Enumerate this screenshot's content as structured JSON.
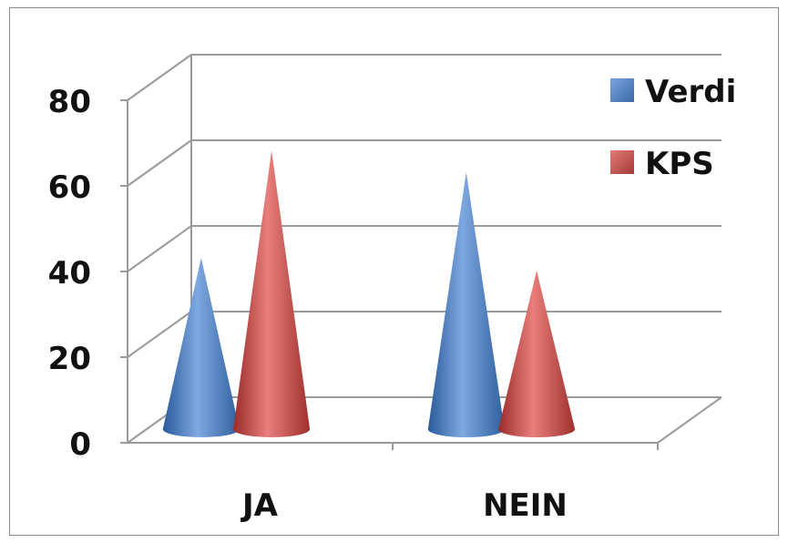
{
  "chart_data": {
    "type": "bar",
    "style": "3d-cone",
    "categories": [
      "JA",
      "NEIN"
    ],
    "series": [
      {
        "name": "Verdi",
        "values": [
          40,
          60
        ],
        "color": "#4f81bd"
      },
      {
        "name": "KPS",
        "values": [
          65,
          37
        ],
        "color": "#c0504d"
      }
    ],
    "ylim": [
      0,
      80
    ],
    "yticks": [
      "0",
      "20",
      "40",
      "60",
      "80"
    ],
    "grid": true,
    "legend_position": "top-right"
  }
}
